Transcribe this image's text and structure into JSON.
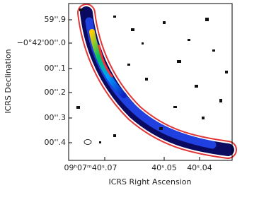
{
  "axes": {
    "x_label": "ICRS Right Ascension",
    "y_label": "ICRS Declination",
    "x_ticks": [
      "09ʰ07ᵐ40ˢ.07",
      "40ˢ.05",
      "40ˢ.04"
    ],
    "y_ticks": [
      "59''.9",
      "−0°42'00''.0",
      "00''.1",
      "00''.2",
      "00''.3",
      "00''.4"
    ]
  }
}
